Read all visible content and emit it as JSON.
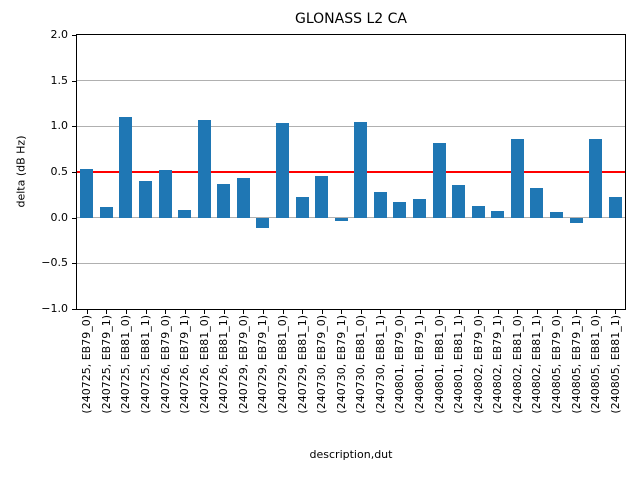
{
  "chart_data": {
    "type": "bar",
    "title": "GLONASS L2 CA",
    "xlabel": "description,dut",
    "ylabel": "delta (dB Hz)",
    "ylim": [
      -1.0,
      2.0
    ],
    "ytick_labels": [
      "2.0",
      "1.5",
      "1.0",
      "0.5",
      "0.0",
      "−0.5",
      "−1.0"
    ],
    "ytick_values": [
      2.0,
      1.5,
      1.0,
      0.5,
      0.0,
      -0.5,
      -1.0
    ],
    "grid": true,
    "grid_color": "#b0b0b0",
    "bar_color": "#1f77b4",
    "threshold_line": {
      "value": 0.5,
      "color": "#ff0000"
    },
    "legend": null,
    "categories": [
      "(240725, EB79_0)",
      "(240725, EB79_1)",
      "(240725, EB81_0)",
      "(240725, EB81_1)",
      "(240726, EB79_0)",
      "(240726, EB79_1)",
      "(240726, EB81_0)",
      "(240726, EB81_1)",
      "(240729, EB79_0)",
      "(240729, EB79_1)",
      "(240729, EB81_0)",
      "(240729, EB81_1)",
      "(240730, EB79_0)",
      "(240730, EB79_1)",
      "(240730, EB81_0)",
      "(240730, EB81_1)",
      "(240801, EB79_0)",
      "(240801, EB79_1)",
      "(240801, EB81_0)",
      "(240801, EB81_1)",
      "(240802, EB79_0)",
      "(240802, EB79_1)",
      "(240802, EB81_0)",
      "(240802, EB81_1)",
      "(240805, EB79_0)",
      "(240805, EB79_1)",
      "(240805, EB81_0)",
      "(240805, EB81_1)"
    ],
    "values": [
      0.53,
      0.12,
      1.1,
      0.4,
      0.52,
      0.08,
      1.07,
      0.37,
      0.43,
      -0.11,
      1.04,
      0.23,
      0.46,
      -0.04,
      1.05,
      0.28,
      0.17,
      0.2,
      0.82,
      0.36,
      0.13,
      0.07,
      0.86,
      0.33,
      0.06,
      -0.06,
      0.86,
      0.23
    ]
  }
}
